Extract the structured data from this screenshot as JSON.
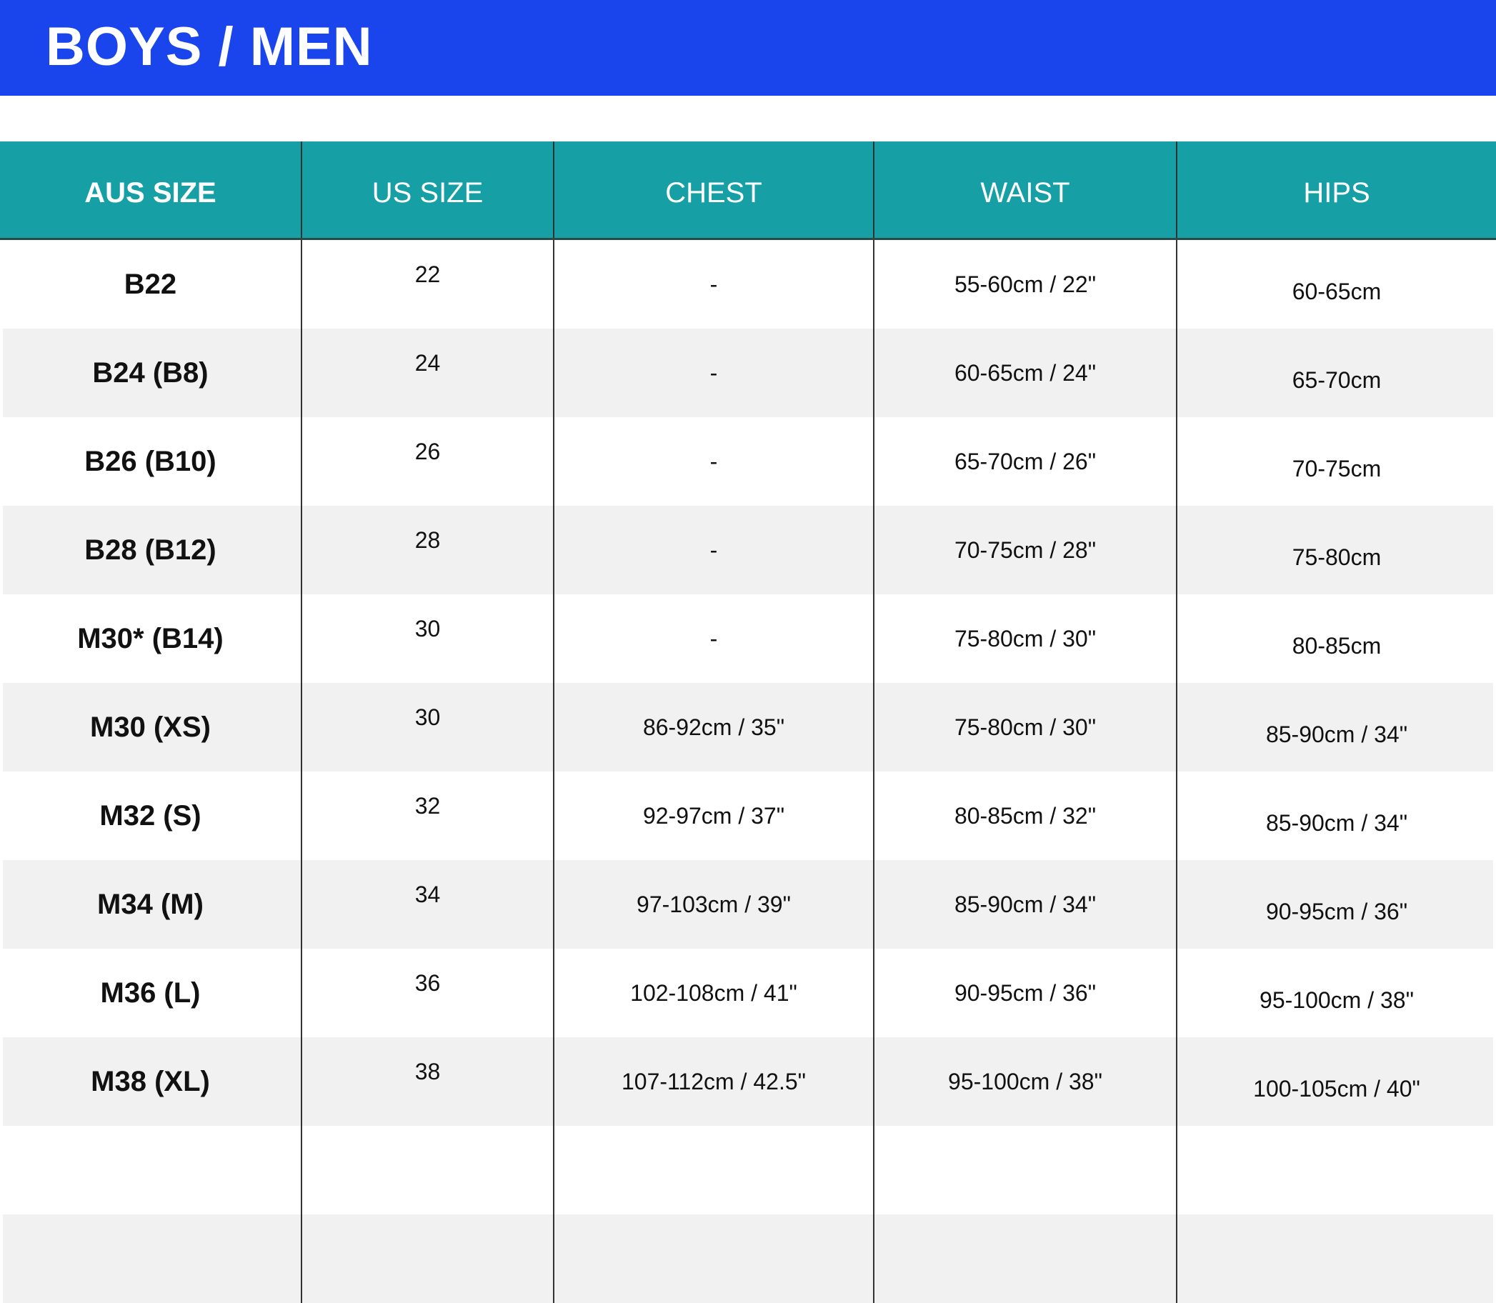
{
  "title": "BOYS / MEN",
  "colors": {
    "banner": "#1a45ed",
    "header": "#16a0a6",
    "alt_row": "#f1f1f1"
  },
  "columns": [
    "AUS SIZE",
    "US SIZE",
    "CHEST",
    "WAIST",
    "HIPS"
  ],
  "rows": [
    {
      "aus": "B22",
      "us": "22",
      "chest": "-",
      "waist": "55-60cm / 22\"",
      "hips": "60-65cm"
    },
    {
      "aus": "B24 (B8)",
      "us": "24",
      "chest": "-",
      "waist": "60-65cm / 24\"",
      "hips": "65-70cm"
    },
    {
      "aus": "B26 (B10)",
      "us": "26",
      "chest": "-",
      "waist": "65-70cm / 26\"",
      "hips": "70-75cm"
    },
    {
      "aus": "B28 (B12)",
      "us": "28",
      "chest": "-",
      "waist": "70-75cm / 28\"",
      "hips": "75-80cm"
    },
    {
      "aus": "M30* (B14)",
      "us": "30",
      "chest": "-",
      "waist": "75-80cm / 30\"",
      "hips": "80-85cm"
    },
    {
      "aus": "M30 (XS)",
      "us": "30",
      "chest": "86-92cm / 35\"",
      "waist": "75-80cm / 30\"",
      "hips": "85-90cm / 34\""
    },
    {
      "aus": "M32 (S)",
      "us": "32",
      "chest": "92-97cm / 37\"",
      "waist": "80-85cm / 32\"",
      "hips": "85-90cm / 34\""
    },
    {
      "aus": "M34 (M)",
      "us": "34",
      "chest": "97-103cm / 39\"",
      "waist": "85-90cm / 34\"",
      "hips": "90-95cm / 36\""
    },
    {
      "aus": "M36 (L)",
      "us": "36",
      "chest": "102-108cm / 41\"",
      "waist": "90-95cm / 36\"",
      "hips": "95-100cm / 38\""
    },
    {
      "aus": "M38 (XL)",
      "us": "38",
      "chest": "107-112cm / 42.5\"",
      "waist": "95-100cm / 38\"",
      "hips": "100-105cm / 40\""
    }
  ]
}
